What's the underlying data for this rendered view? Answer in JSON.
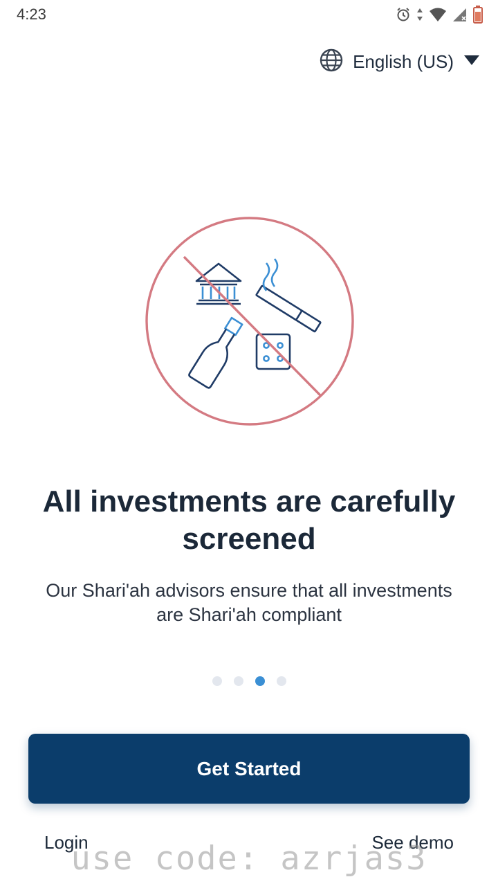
{
  "status_bar": {
    "time": "4:23",
    "icons": [
      "alarm-icon",
      "data-arrows-icon",
      "wifi-icon",
      "signal-icon",
      "battery-low-icon"
    ]
  },
  "language": {
    "label": "English (US)",
    "icon": "globe-icon",
    "dropdown_icon": "caret-down-icon"
  },
  "illustration": {
    "icons": [
      "bank-icon",
      "cigarette-icon",
      "bottle-icon",
      "dice-icon",
      "prohibited-sign-icon"
    ],
    "colors": {
      "line": "#1f3b66",
      "accent": "#3b8fd4",
      "prohibition": "#d47a82"
    }
  },
  "onboarding": {
    "headline": "All investments are carefully screened",
    "subtext": "Our Shari'ah advisors ensure that all investments are Shari'ah compliant",
    "pages_total": 4,
    "current_page": 3
  },
  "actions": {
    "get_started": "Get Started",
    "login": "Login",
    "see_demo": "See demo"
  },
  "watermark": "use code: azrjas3",
  "colors": {
    "primary": "#0b3d6b",
    "dot_active": "#3b8fd4",
    "dot_inactive": "#e3e7ee"
  }
}
